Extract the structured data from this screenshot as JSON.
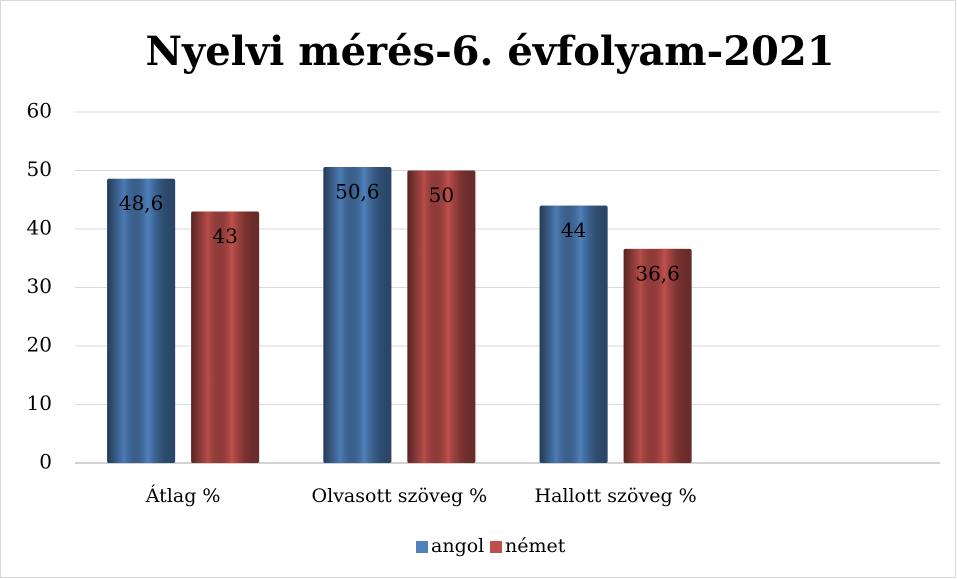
{
  "chart_data": {
    "type": "bar",
    "title": "Nyelvi mérés-6. évfolyam-2021",
    "categories": [
      "Átlag %",
      "Olvasott szöveg %",
      "Hallott szöveg %",
      null
    ],
    "series": [
      {
        "name": "angol",
        "color": "#4f81bd",
        "values": [
          48.6,
          50.6,
          44,
          null
        ],
        "value_labels": [
          "48,6",
          "50,6",
          "44",
          null
        ]
      },
      {
        "name": "német",
        "color": "#c0504d",
        "values": [
          43,
          50,
          36.6,
          null
        ],
        "value_labels": [
          "43",
          "50",
          "36,6",
          null
        ]
      }
    ],
    "ylim": [
      0,
      60
    ],
    "yticks": [
      0,
      10,
      20,
      30,
      40,
      50,
      60
    ],
    "grid": true,
    "legend": "bottom"
  }
}
